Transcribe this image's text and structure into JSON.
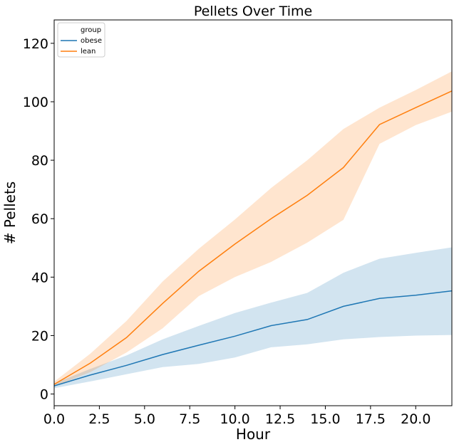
{
  "chart_data": {
    "type": "line",
    "title": "Pellets Over Time",
    "xlabel": "Hour",
    "ylabel": "# Pellets",
    "xlim": [
      0,
      22
    ],
    "ylim": [
      -4,
      128
    ],
    "xticks": [
      0.0,
      2.5,
      5.0,
      7.5,
      10.0,
      12.5,
      15.0,
      17.5,
      20.0
    ],
    "xtick_labels": [
      "0.0",
      "2.5",
      "5.0",
      "7.5",
      "10.0",
      "12.5",
      "15.0",
      "17.5",
      "20.0"
    ],
    "yticks": [
      0,
      20,
      40,
      60,
      80,
      100,
      120
    ],
    "ytick_labels": [
      "0",
      "20",
      "40",
      "60",
      "80",
      "100",
      "120"
    ],
    "grid": false,
    "legend": {
      "title": "group",
      "placement": "top-left"
    },
    "x": [
      0,
      2,
      4,
      6,
      8,
      10,
      12,
      14,
      16,
      18,
      20,
      22
    ],
    "series": [
      {
        "name": "obese",
        "color": "#1f77b4",
        "values": [
          2.8,
          6.5,
          9.8,
          13.5,
          16.7,
          19.8,
          23.4,
          25.5,
          30.0,
          32.7,
          33.8,
          35.3
        ],
        "ci_lower": [
          2.0,
          4.3,
          6.8,
          9.2,
          10.3,
          12.5,
          16.0,
          17.0,
          18.7,
          19.5,
          20.0,
          20.2
        ],
        "ci_upper": [
          3.6,
          8.6,
          13.2,
          18.7,
          23.3,
          27.7,
          31.3,
          34.6,
          41.5,
          46.3,
          48.3,
          50.2
        ]
      },
      {
        "name": "lean",
        "color": "#ff7f0e",
        "values": [
          3.3,
          10.6,
          19.3,
          31.0,
          42.0,
          51.3,
          60.0,
          68.0,
          77.5,
          92.2,
          98.0,
          103.7
        ],
        "ci_lower": [
          2.6,
          7.5,
          14.2,
          22.5,
          33.5,
          40.0,
          45.2,
          51.8,
          59.6,
          85.6,
          92.0,
          96.6
        ],
        "ci_upper": [
          4.2,
          13.8,
          25.0,
          38.5,
          49.7,
          59.7,
          70.5,
          80.0,
          90.7,
          98.0,
          104.0,
          110.4
        ]
      }
    ]
  }
}
